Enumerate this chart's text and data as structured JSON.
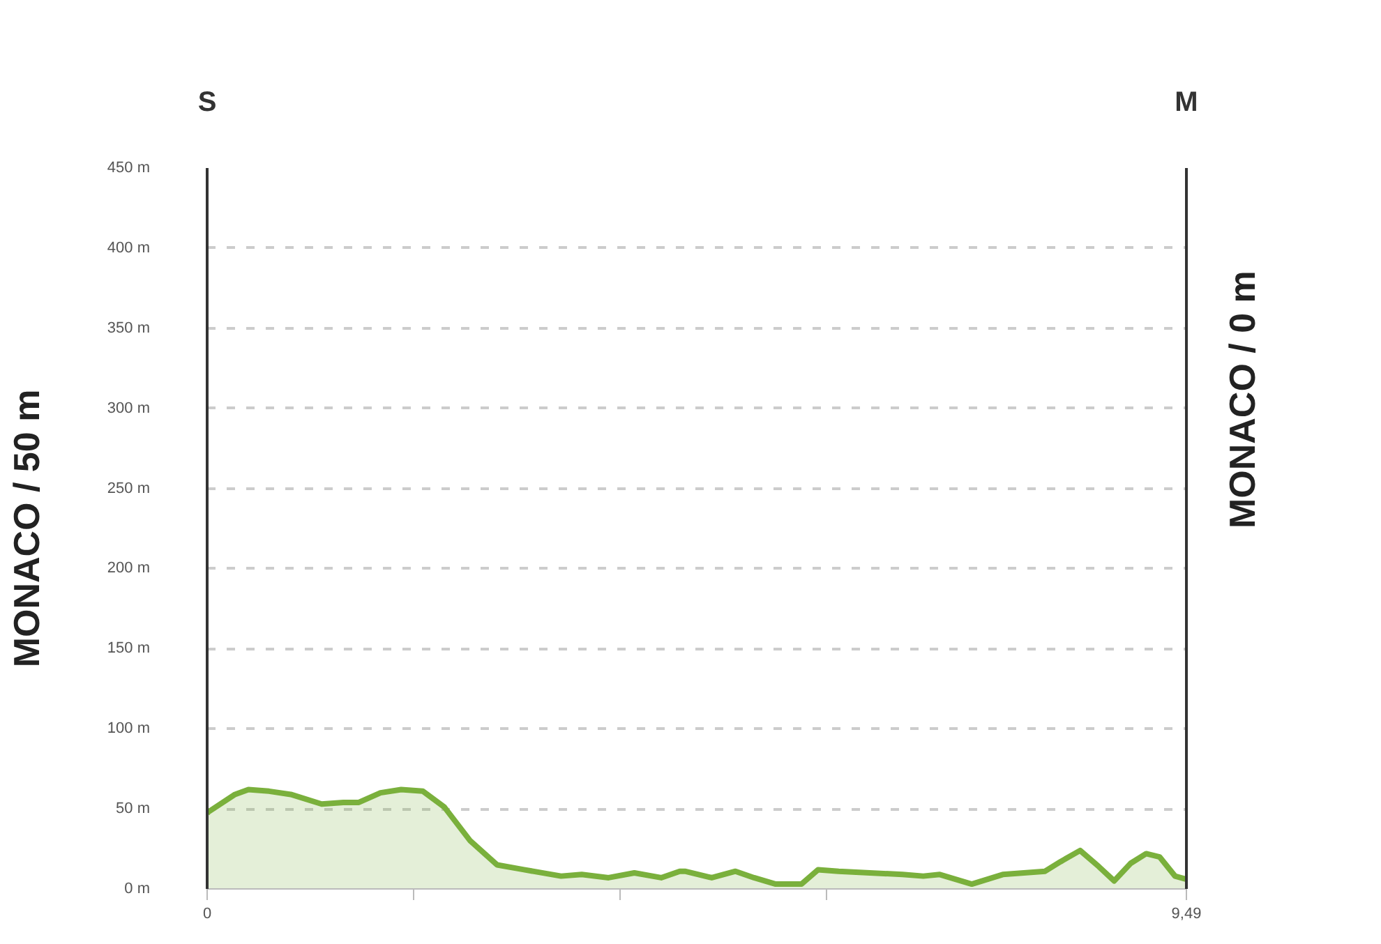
{
  "chart_data": {
    "type": "area",
    "ylabel": "MONACO / 50 m",
    "annotations": [
      "MONACO / 0 m",
      "S",
      "M"
    ],
    "x": [
      0,
      0.01,
      0.27,
      0.4,
      0.6,
      0.81,
      1.11,
      1.32,
      1.47,
      1.68,
      1.88,
      2.09,
      2.3,
      2.55,
      2.81,
      3.07,
      3.43,
      3.63,
      3.89,
      4.14,
      4.4,
      4.58,
      4.63,
      4.89,
      5.12,
      5.3,
      5.51,
      5.76,
      5.92,
      6.12,
      6.74,
      6.94,
      7.1,
      7.41,
      7.71,
      8.12,
      8.27,
      8.46,
      8.64,
      8.79,
      8.95,
      9.1,
      9.23,
      9.38,
      9.49
    ],
    "series": [
      {
        "color": "#7ab03c",
        "values": [
          47,
          48,
          59,
          62,
          61,
          59,
          53,
          54,
          54,
          60,
          62,
          61,
          51,
          30,
          15,
          12,
          8,
          9,
          7,
          10,
          7,
          11,
          11,
          7,
          11,
          7,
          3,
          3,
          12,
          11,
          9,
          8,
          9,
          3,
          9,
          11,
          17,
          24,
          14,
          5,
          16,
          22,
          20,
          8,
          6
        ]
      }
    ],
    "xlim": [
      0,
      9.49
    ],
    "ylim": [
      0,
      450
    ],
    "xticks": [
      0,
      {
        "value": 2,
        "label": null
      },
      {
        "value": 4,
        "label": null
      },
      {
        "value": 6,
        "label": null
      },
      {
        "value": 9.49,
        "label": "9,49"
      }
    ],
    "yticks": [
      {
        "value": 0,
        "label": "0 m"
      },
      {
        "value": 50,
        "label": "50 m"
      },
      {
        "value": 100,
        "label": "100 m"
      },
      {
        "value": 150,
        "label": "150 m"
      },
      {
        "value": 200,
        "label": "200 m"
      },
      {
        "value": 250,
        "label": "250 m"
      },
      {
        "value": 300,
        "label": "300 m"
      },
      {
        "value": 350,
        "label": "350 m"
      },
      {
        "value": 400,
        "label": "400 m"
      },
      {
        "value": 450,
        "label": "450 m"
      }
    ],
    "grid": "y"
  }
}
